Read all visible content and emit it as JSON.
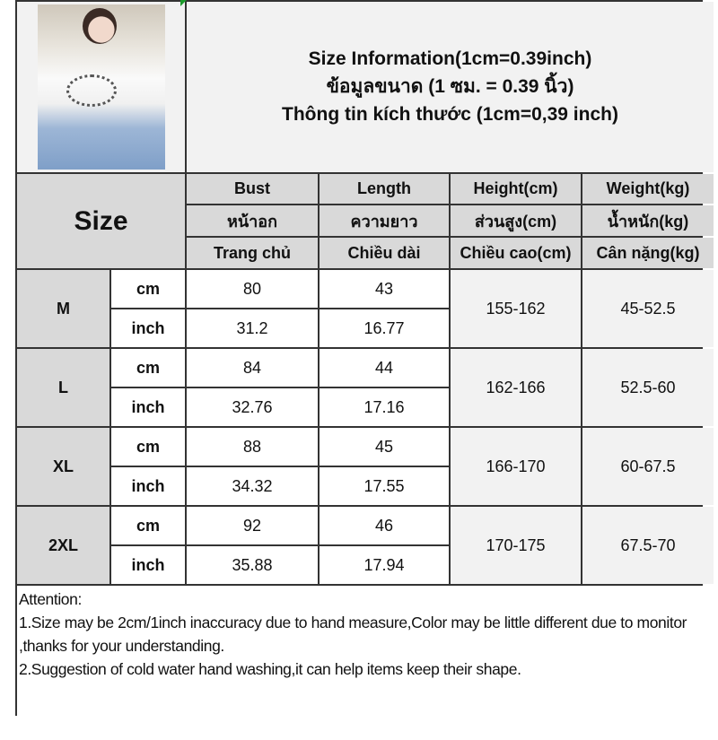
{
  "title": {
    "line1": "Size Information(1cm=0.39inch)",
    "line2": "ข้อมูลขนาด (1 ซม. = 0.39 นิ้ว)",
    "line3": "Thông tin kích thước (1cm=0,39 inch)"
  },
  "size_label": "Size",
  "headers": [
    {
      "en": "Bust",
      "th": "หน้าอก",
      "vi": "Trang chủ"
    },
    {
      "en": "Length",
      "th": "ความยาว",
      "vi": "Chiều dài"
    },
    {
      "en": "Height(cm)",
      "th": "ส่วนสูง(cm)",
      "vi": "Chiều cao(cm)"
    },
    {
      "en": "Weight(kg)",
      "th": "น้ำหนัก(kg)",
      "vi": "Cân nặng(kg)"
    }
  ],
  "units": {
    "cm": "cm",
    "inch": "inch"
  },
  "rows": [
    {
      "size": "M",
      "bust_cm": "80",
      "length_cm": "43",
      "bust_in": "31.2",
      "length_in": "16.77",
      "height": "155-162",
      "weight": "45-52.5"
    },
    {
      "size": "L",
      "bust_cm": "84",
      "length_cm": "44",
      "bust_in": "32.76",
      "length_in": "17.16",
      "height": "162-166",
      "weight": "52.5-60"
    },
    {
      "size": "XL",
      "bust_cm": "88",
      "length_cm": "45",
      "bust_in": "34.32",
      "length_in": "17.55",
      "height": "166-170",
      "weight": "60-67.5"
    },
    {
      "size": "2XL",
      "bust_cm": "92",
      "length_cm": "46",
      "bust_in": "35.88",
      "length_in": "17.94",
      "height": "170-175",
      "weight": "67.5-70"
    }
  ],
  "attention": {
    "heading": "Attention:",
    "note1": "1.Size may be 2cm/1inch inaccuracy due to hand measure,Color may be little different due to monitor ,thanks for your understanding.",
    "note2": "2.Suggestion of cold water hand washing,it can help items keep their shape."
  },
  "colors": {
    "header_bg": "#d9d9d9",
    "light_bg": "#f2f2f2",
    "border": "#333333"
  }
}
